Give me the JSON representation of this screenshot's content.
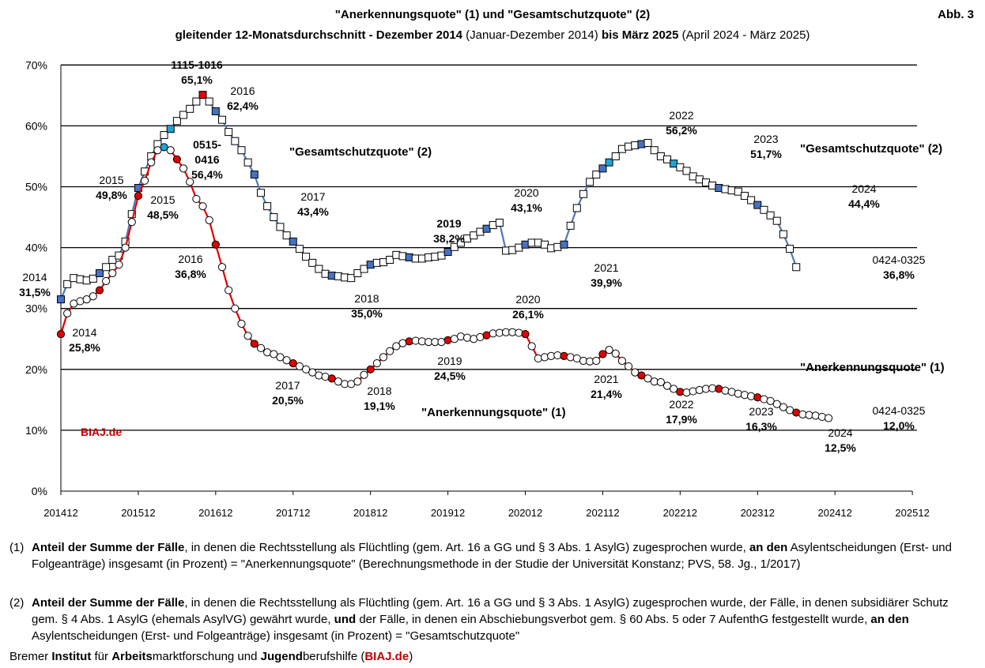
{
  "header": {
    "title_part1": "\"Anerkennungsquote\" (1) und \"Gesamtschutzquote\" (2)",
    "subtitle": {
      "p1": "gleitender 12-Monatsdurchschnitt - ",
      "p2": "Dezember 2014",
      "p3": " (Januar-Dezember 2014) ",
      "p4": "bis März 2025",
      "p5": " (April 2024 - März 2025)"
    },
    "figure_label": "Abb. 3"
  },
  "colors": {
    "red_line": "#e00000",
    "blue_line": "#4f78b7",
    "marker_red": "#e00000",
    "marker_blue": "#4472c4",
    "marker_cyan": "#1fa3d6",
    "brand_red": "#c00000"
  },
  "chart_data": {
    "type": "line",
    "x_axis": {
      "ticks": [
        "201412",
        "201512",
        "201612",
        "201712",
        "201812",
        "201912",
        "202012",
        "202112",
        "202212",
        "202312",
        "202412",
        "202512"
      ],
      "range_months_from": "2014-12",
      "range_months_to": "2025-12"
    },
    "y_axis": {
      "ticks": [
        "0%",
        "10%",
        "20%",
        "30%",
        "40%",
        "50%",
        "60%",
        "70%"
      ],
      "ylim": [
        0,
        70
      ],
      "unit": "%"
    },
    "grid": "horizontal",
    "series": [
      {
        "name": "\"Gesamtschutzquote\" (2)",
        "line_color": "#4f78b7",
        "marker": "square",
        "start_month": "2014-12",
        "values": [
          31.5,
          34.0,
          35.0,
          34.8,
          34.6,
          34.9,
          35.8,
          36.8,
          38.0,
          38.7,
          41.0,
          45.5,
          49.8,
          52.5,
          55.0,
          57.0,
          58.5,
          59.5,
          60.8,
          61.8,
          62.8,
          64.0,
          65.1,
          64.0,
          62.4,
          61.0,
          59.0,
          57.5,
          56.0,
          54.0,
          52.0,
          49.0,
          46.8,
          45.0,
          43.4,
          42.0,
          41.0,
          39.8,
          38.5,
          37.5,
          36.5,
          35.7,
          35.4,
          35.3,
          35.1,
          35.0,
          35.8,
          36.5,
          37.2,
          37.5,
          37.6,
          38.0,
          38.8,
          38.6,
          38.4,
          38.2,
          38.2,
          38.4,
          38.5,
          38.7,
          39.3,
          40.1,
          40.8,
          41.5,
          42.0,
          42.6,
          43.1,
          43.7,
          44.1,
          39.5,
          39.6,
          40.0,
          40.5,
          40.8,
          40.8,
          40.5,
          39.9,
          40.1,
          40.5,
          43.6,
          46.5,
          48.8,
          50.8,
          52.0,
          53.0,
          54.0,
          55.0,
          56.2,
          56.6,
          56.8,
          57.0,
          57.2,
          56.0,
          55.0,
          54.5,
          53.8,
          53.2,
          52.6,
          51.7,
          51.2,
          50.7,
          50.2,
          49.8,
          49.6,
          49.4,
          49.2,
          48.5,
          47.8,
          47.0,
          46.2,
          45.3,
          44.4,
          42.2,
          39.8,
          36.8
        ],
        "highlight_red": [
          22,
          124
        ],
        "highlight_cyan": [
          17,
          85,
          95
        ],
        "highlight_blue": [
          0,
          6,
          12,
          24,
          30,
          36,
          42,
          48,
          54,
          60,
          66,
          72,
          78,
          84,
          90,
          102,
          108,
          120
        ]
      },
      {
        "name": "\"Anerkennungsquote\" (1)",
        "line_color": "#e00000",
        "marker": "circle",
        "start_month": "2014-12",
        "values": [
          25.8,
          29.2,
          30.8,
          31.2,
          31.5,
          32.0,
          33.0,
          34.5,
          35.8,
          37.2,
          40.0,
          44.2,
          48.5,
          51.0,
          54.0,
          56.0,
          56.5,
          56.0,
          54.5,
          53.0,
          50.8,
          48.0,
          46.8,
          44.5,
          40.5,
          36.8,
          33.0,
          30.0,
          27.5,
          25.5,
          24.2,
          23.5,
          22.8,
          22.5,
          22.0,
          21.5,
          21.0,
          20.5,
          20.0,
          19.5,
          19.0,
          18.8,
          18.5,
          18.0,
          17.6,
          17.6,
          18.0,
          19.1,
          20.0,
          21.0,
          22.0,
          23.0,
          23.8,
          24.3,
          24.6,
          24.7,
          24.6,
          24.5,
          24.5,
          24.5,
          24.8,
          25.0,
          25.4,
          25.2,
          25.0,
          25.3,
          25.6,
          25.9,
          26.0,
          26.1,
          26.1,
          26.0,
          25.8,
          23.8,
          21.8,
          22.0,
          22.2,
          22.3,
          22.2,
          22.0,
          21.8,
          21.4,
          21.3,
          21.4,
          22.5,
          23.2,
          22.6,
          21.4,
          20.5,
          19.5,
          19.0,
          18.5,
          18.0,
          17.9,
          17.3,
          16.8,
          16.3,
          16.2,
          16.4,
          16.6,
          16.8,
          16.9,
          16.8,
          16.5,
          16.3,
          16.0,
          15.8,
          15.6,
          15.4,
          15.1,
          14.8,
          14.3,
          13.8,
          13.3,
          12.9,
          12.6,
          12.5,
          12.4,
          12.2,
          12.0
        ],
        "highlight_red": [
          0,
          6,
          12,
          18,
          24,
          30,
          36,
          42,
          48,
          54,
          60,
          66,
          72,
          78,
          84,
          90,
          96,
          102,
          108,
          114,
          120
        ],
        "highlight_cyan": [
          16,
          124
        ]
      }
    ],
    "annotations": {
      "a01": [
        "1115-1016",
        "65,1%"
      ],
      "a02": [
        "2016",
        "62,4%"
      ],
      "a03": [
        "0515-",
        "0416",
        "56,4%"
      ],
      "a04": [
        "2015",
        "49,8%"
      ],
      "a05": [
        "2015",
        "48,5%"
      ],
      "a06": [
        "2016",
        "36,8%"
      ],
      "a07": [
        "2014",
        "31,5%"
      ],
      "a08": [
        "2014",
        "25,8%"
      ],
      "a09": [
        "2017",
        "43,4%"
      ],
      "a10": [
        "2019",
        "38,2%"
      ],
      "a11": [
        "2020",
        "43,1%"
      ],
      "a12": [
        "2021",
        "39,9%"
      ],
      "a13": [
        "2018",
        "35,0%"
      ],
      "a14": [
        "2022",
        "56,2%"
      ],
      "a15": [
        "2023",
        "51,7%"
      ],
      "a16": [
        "2024",
        "44,4%"
      ],
      "a17": [
        "0424-0325",
        "36,8%"
      ],
      "a18": [
        "2020",
        "26,1%"
      ],
      "a19": [
        "2019",
        "24,5%"
      ],
      "a20": [
        "2021",
        "21,4%"
      ],
      "a21": [
        "2017",
        "20,5%"
      ],
      "a22": [
        "2018",
        "19,1%"
      ],
      "a23": [
        "2022",
        "17,9%"
      ],
      "a24": [
        "2023",
        "16,3%"
      ],
      "a25": [
        "2024",
        "12,5%"
      ],
      "a26": [
        "0424-0325",
        "12,0%"
      ],
      "label_gs_mid": "\"Gesamtschutzquote\" (2)",
      "label_gs_right": "\"Gesamtschutzquote\" (2)",
      "label_an_mid": "\"Anerkennungsquote\" (1)",
      "label_an_right": "\"Anerkennungsquote\" (1)",
      "watermark": "BIAJ.de"
    }
  },
  "notes": {
    "n1": {
      "num": "(1)",
      "b1": "Anteil der Summe der Fälle",
      "t1": ", in denen die Rechtsstellung als Flüchtling (gem. Art. 16 a GG und § 3 Abs. 1 AsylG) zugesprochen wurde, ",
      "b2": "an den",
      "t2": " Asylentscheidungen (Erst- und Folgeanträge) insgesamt (in Prozent) = \"Anerkennungsquote\" (Berechnungsmethode in der Studie der Universität Konstanz; PVS, 58. Jg., 1/2017)"
    },
    "n2": {
      "num": "(2)",
      "b1": "Anteil der Summe der Fälle",
      "t1": ", in denen die Rechtsstellung als Flüchtling (gem. Art. 16 a GG und § 3 Abs. 1 AsylG) zugesprochen wurde, der Fälle, in denen subsidiärer Schutz gem. § 4 Abs. 1 AsylG (ehemals AsylVG) gewährt wurde, ",
      "b2": "und",
      "t2": " der Fälle, in denen ein Abschiebungsverbot gem. § 60 Abs. 5 oder 7 AufenthG festgestellt wurde, ",
      "b3": "an den",
      "t3": " Asylentscheidungen (Erst- und Folgeanträge) insgesamt (in Prozent) = \"Gesamtschutzquote\""
    }
  },
  "credit": {
    "c1": "Bremer ",
    "c2": "Institut",
    "c3": " für ",
    "c4": "Arbeits",
    "c5": "marktforschung und ",
    "c6": "Jugend",
    "c7": "berufshilfe (",
    "c8": "BIAJ.de",
    "c9": ")"
  }
}
